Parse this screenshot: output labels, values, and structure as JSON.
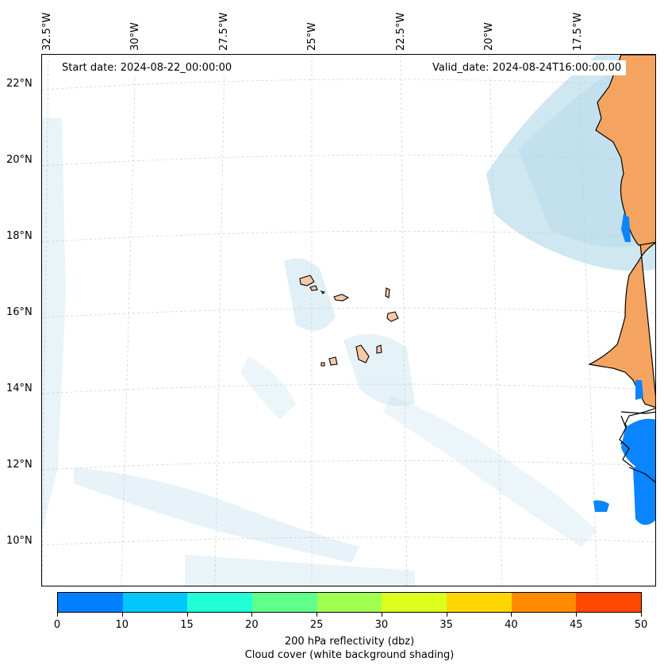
{
  "map": {
    "start_date": "Start date: 2024-08-22_00:00:00",
    "valid_date": "Valid_date: 2024-08-24T16:00:00.00",
    "lat_labels": [
      "22°N",
      "20°N",
      "18°N",
      "16°N",
      "14°N",
      "12°N",
      "10°N"
    ],
    "lon_labels": [
      "32.5°W",
      "30°W",
      "27.5°W",
      "25°W",
      "22.5°W",
      "20°W",
      "17.5°W"
    ],
    "land_color": "#f4a460",
    "island_color": "#f8c9a8",
    "cloud_color": "#a8d4e6",
    "reflectivity_color": "#0a84ff"
  },
  "colorbar": {
    "ticks": [
      "0",
      "10",
      "15",
      "20",
      "25",
      "30",
      "35",
      "40",
      "45",
      "50"
    ],
    "colors": [
      "#0080ff",
      "#00c8ff",
      "#22ffd8",
      "#60ff8c",
      "#a0ff50",
      "#dcff1e",
      "#ffd700",
      "#ff8c00",
      "#ff4800"
    ],
    "label_line1": "200 hPa reflectivity (dbz)",
    "label_line2": "Cloud cover (white background shading)"
  }
}
